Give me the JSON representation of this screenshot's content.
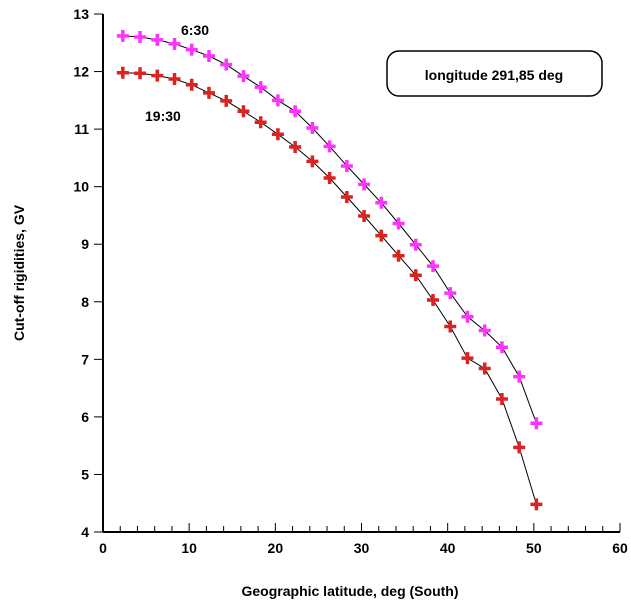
{
  "chart_data": {
    "type": "line",
    "title": "",
    "xlabel": "Geographic latitude, deg (South)",
    "ylabel": "Cut-off rigidities, GV",
    "xlim": [
      0,
      60
    ],
    "ylim": [
      4,
      13
    ],
    "x_ticks": [
      "0",
      "10",
      "20",
      "30",
      "40",
      "50",
      "60"
    ],
    "y_ticks": [
      "4",
      "5",
      "6",
      "7",
      "8",
      "9",
      "10",
      "11",
      "12",
      "13"
    ],
    "annotation": "longitude 291,85 deg",
    "grid": false,
    "series": [
      {
        "name": "6:30",
        "color": "#ff33ff",
        "marker": "plus",
        "x": [
          2.3,
          4.3,
          6.3,
          8.3,
          10.3,
          12.3,
          14.3,
          16.3,
          18.3,
          20.3,
          22.3,
          24.3,
          26.3,
          28.3,
          30.3,
          32.3,
          34.3,
          36.3,
          38.3,
          40.3,
          42.3,
          44.3,
          46.3,
          48.3,
          50.3
        ],
        "y": [
          12.62,
          12.6,
          12.55,
          12.48,
          12.38,
          12.27,
          12.12,
          11.92,
          11.73,
          11.5,
          11.31,
          11.02,
          10.7,
          10.36,
          10.04,
          9.72,
          9.36,
          8.99,
          8.62,
          8.15,
          7.74,
          7.5,
          7.21,
          6.7,
          5.89
        ]
      },
      {
        "name": "19:30",
        "color": "#dd2222",
        "marker": "plus",
        "x": [
          2.3,
          4.3,
          6.3,
          8.3,
          10.3,
          12.3,
          14.3,
          16.3,
          18.3,
          20.3,
          22.3,
          24.3,
          26.3,
          28.3,
          30.3,
          32.3,
          34.3,
          36.3,
          38.3,
          40.3,
          42.3,
          44.3,
          46.3,
          48.3,
          50.3
        ],
        "y": [
          11.98,
          11.97,
          11.93,
          11.87,
          11.77,
          11.63,
          11.49,
          11.31,
          11.12,
          10.91,
          10.69,
          10.44,
          10.15,
          9.82,
          9.49,
          9.15,
          8.8,
          8.46,
          8.03,
          7.57,
          7.02,
          6.84,
          6.31,
          5.47,
          4.48
        ]
      }
    ]
  }
}
